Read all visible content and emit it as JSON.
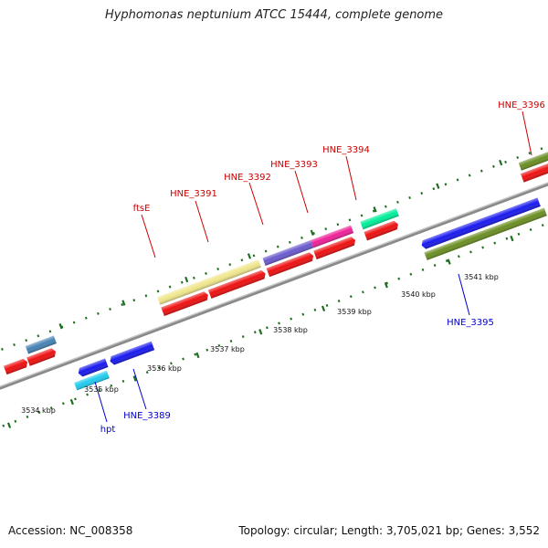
{
  "title": "Hyphomonas neptunium ATCC 15444, complete genome",
  "footer": {
    "accession": "Accession: NC_008358",
    "summary": "Topology: circular; Length: 3,705,021 bp; Genes: 3,552"
  },
  "colors": {
    "backbone": "#8a8a8a",
    "tick": "#1f6e1f",
    "forward_label": "#cc0000",
    "reverse_label": "#0000cc",
    "cds": "#ee1111"
  },
  "ticks": [
    {
      "label": "3534 kbp"
    },
    {
      "label": "3535 kbp"
    },
    {
      "label": "3536 kbp"
    },
    {
      "label": "3537 kbp"
    },
    {
      "label": "3538 kbp"
    },
    {
      "label": "3539 kbp"
    },
    {
      "label": "3540 kbp"
    },
    {
      "label": "3541 kbp"
    }
  ],
  "gene_labels": {
    "forward": [
      "ftsE",
      "HNE_3391",
      "HNE_3392",
      "HNE_3393",
      "HNE_3394",
      "HNE_3396"
    ],
    "reverse": [
      "hpt",
      "HNE_3389",
      "HNE_3395"
    ]
  }
}
